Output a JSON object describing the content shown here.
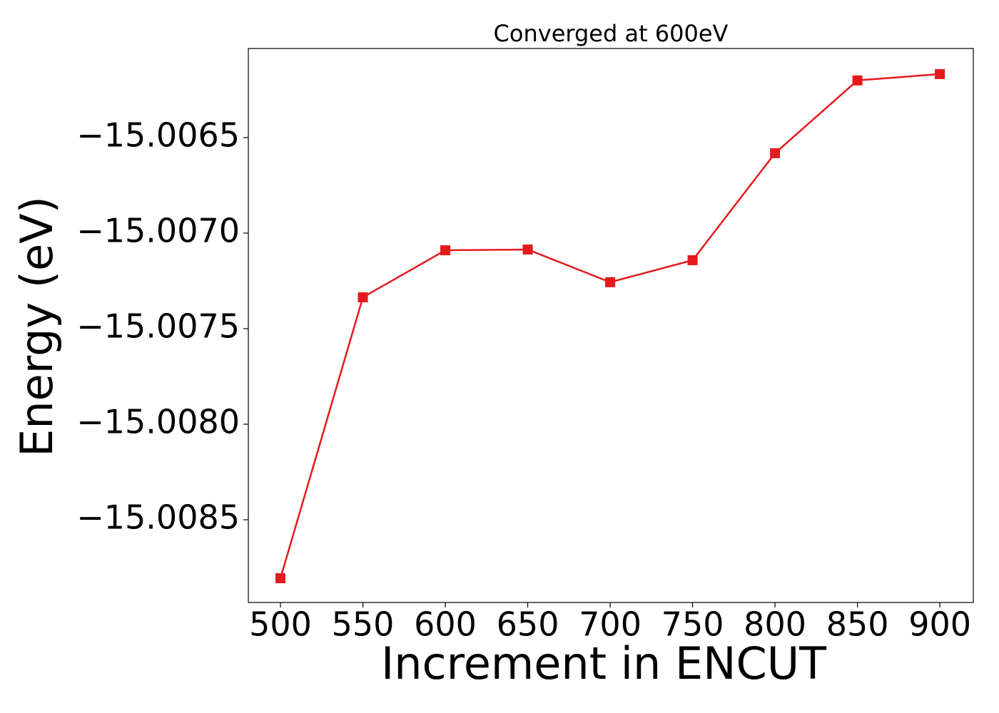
{
  "chart_data": {
    "type": "line",
    "title": "Converged at 600eV",
    "x_label": "Increment in ENCUT",
    "y_label": "Energy (eV)",
    "x": [
      500,
      550,
      600,
      650,
      700,
      750,
      800,
      850,
      900
    ],
    "series": [
      {
        "color": "#e41a1c",
        "marker": "square",
        "values": [
          -15.008806,
          -15.007336,
          -15.00709,
          -15.007086,
          -15.007257,
          -15.007142,
          -15.006582,
          -15.006201,
          -15.006168
        ]
      }
    ],
    "xlim": [
      480.5,
      920.3
    ],
    "xticks": [
      500,
      550,
      600,
      650,
      700,
      750,
      800,
      850,
      900
    ],
    "ylim": [
      -15.008933,
      -15.006034
    ],
    "yticks": [
      {
        "value": -15.0085,
        "label": "−15.0085"
      },
      {
        "value": -15.008,
        "label": "−15.0080"
      },
      {
        "value": -15.0075,
        "label": "−15.0075"
      },
      {
        "value": -15.007,
        "label": "−15.0070"
      },
      {
        "value": -15.0065,
        "label": "−15.0065"
      }
    ],
    "grid": false
  }
}
